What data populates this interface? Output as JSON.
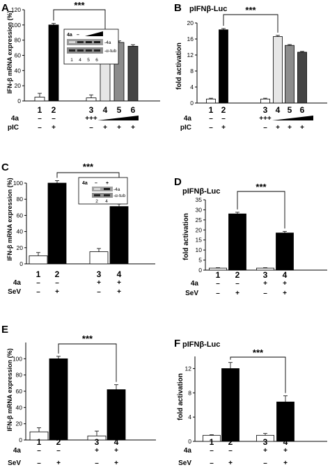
{
  "chart_data": [
    {
      "panel": "A",
      "type": "bar",
      "ylabel": "IFN-β mRNA expression (%)",
      "title": "",
      "ylim": [
        0,
        120
      ],
      "yticks": [
        0,
        20,
        40,
        60,
        80,
        100,
        120
      ],
      "categories": [
        "1",
        "2",
        "3",
        "4",
        "5",
        "6"
      ],
      "values": [
        5,
        100,
        4,
        90,
        77,
        72
      ],
      "errors": [
        5,
        2,
        4,
        1,
        2,
        2
      ],
      "colors": [
        "#ffffff",
        "#000000",
        "#ffffff",
        "#e6e6e6",
        "#8c8c8c",
        "#444444"
      ],
      "row_labels": [
        "4a",
        "pIC"
      ],
      "rows": [
        [
          "–",
          "–",
          "+++",
          "",
          "",
          ""
        ],
        [
          "–",
          "+",
          "–",
          "+",
          "+",
          "+"
        ]
      ],
      "significance": "***",
      "inset": {
        "lanes": [
          "1",
          "4",
          "5",
          "6"
        ],
        "label_4a": "4a",
        "minus": "–",
        "bands": [
          "-4a",
          "-α-tub"
        ]
      }
    },
    {
      "panel": "B",
      "type": "bar",
      "ylabel": "fold activation",
      "title": "pIFNβ-Luc",
      "ylim": [
        0,
        20
      ],
      "yticks": [
        0,
        4,
        8,
        12,
        16,
        20
      ],
      "categories": [
        "1",
        "2",
        "3",
        "4",
        "5",
        "6"
      ],
      "values": [
        1,
        18.3,
        1,
        16.6,
        14.4,
        12.7
      ],
      "errors": [
        0.2,
        0.3,
        0.2,
        0.3,
        0.2,
        0.2
      ],
      "colors": [
        "#ffffff",
        "#000000",
        "#ffffff",
        "#e6e6e6",
        "#8c8c8c",
        "#444444"
      ],
      "row_labels": [
        "4a",
        "pIC"
      ],
      "rows": [
        [
          "–",
          "–",
          "+++",
          "",
          "",
          ""
        ],
        [
          "–",
          "+",
          "–",
          "+",
          "+",
          "+"
        ]
      ],
      "significance": "***"
    },
    {
      "panel": "C",
      "type": "bar",
      "ylabel": "IFN-β mRNA expression (%)",
      "title": "",
      "ylim": [
        0,
        100
      ],
      "yticks": [
        0,
        20,
        40,
        60,
        80,
        100
      ],
      "categories": [
        "1",
        "2",
        "3",
        "4"
      ],
      "values": [
        10,
        100,
        15,
        71
      ],
      "errors": [
        4,
        3,
        4,
        3
      ],
      "colors": [
        "#ffffff",
        "#000000",
        "#ffffff",
        "#000000"
      ],
      "row_labels": [
        "4a",
        "SeV"
      ],
      "rows": [
        [
          "–",
          "–",
          "+",
          "+"
        ],
        [
          "–",
          "+",
          "–",
          "+"
        ]
      ],
      "significance": "***",
      "inset": {
        "lanes": [
          "2",
          "4"
        ],
        "label_4a": "4a",
        "minus": "–",
        "plus": "+",
        "bands": [
          "-4a",
          "-α-tub"
        ]
      }
    },
    {
      "panel": "D",
      "type": "bar",
      "ylabel": "fold activation",
      "title": "pIFNβ-Luc",
      "ylim": [
        0,
        35
      ],
      "yticks": [
        0,
        5,
        10,
        15,
        20,
        25,
        30,
        35
      ],
      "categories": [
        "1",
        "2",
        "3",
        "4"
      ],
      "values": [
        1,
        28,
        1,
        18.5
      ],
      "errors": [
        0.2,
        0.8,
        0.2,
        0.8
      ],
      "colors": [
        "#ffffff",
        "#000000",
        "#ffffff",
        "#000000"
      ],
      "row_labels": [
        "4a",
        "SeV"
      ],
      "rows": [
        [
          "–",
          "–",
          "+",
          "+"
        ],
        [
          "–",
          "+",
          "–",
          "+"
        ]
      ],
      "significance": "***"
    },
    {
      "panel": "E",
      "type": "bar",
      "ylabel": "IFN-β mRNA expression (%)",
      "title": "",
      "ylim": [
        0,
        120
      ],
      "yticks": [
        0,
        20,
        40,
        60,
        80,
        100
      ],
      "categories": [
        "1",
        "2",
        "3",
        "4"
      ],
      "values": [
        10,
        100,
        5,
        62
      ],
      "errors": [
        5,
        3,
        6,
        6
      ],
      "colors": [
        "#ffffff",
        "#000000",
        "#ffffff",
        "#000000"
      ],
      "row_labels": [
        "4a",
        "SeV"
      ],
      "rows": [
        [
          "–",
          "–",
          "+",
          "+"
        ],
        [
          "–",
          "+",
          "–",
          "+"
        ]
      ],
      "significance": "***"
    },
    {
      "panel": "F",
      "type": "bar",
      "ylabel": "fold activation",
      "title": "pIFNβ-Luc",
      "ylim": [
        0,
        14
      ],
      "yticks": [
        0,
        4,
        8,
        12
      ],
      "categories": [
        "1",
        "2",
        "3",
        "4"
      ],
      "values": [
        1,
        12,
        1,
        6.5
      ],
      "errors": [
        0.1,
        1,
        0.3,
        1
      ],
      "colors": [
        "#ffffff",
        "#000000",
        "#ffffff",
        "#000000"
      ],
      "row_labels": [
        "4a",
        "SeV"
      ],
      "rows": [
        [
          "–",
          "–",
          "+",
          "+"
        ],
        [
          "–",
          "+",
          "–",
          "+"
        ]
      ],
      "significance": "***"
    }
  ]
}
